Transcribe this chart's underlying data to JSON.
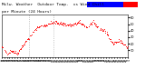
{
  "title": "Milw. Weather  Outdoor Temp.  vs Wind Chill",
  "subtitle": "per Minute (24 Hours)",
  "bg_color": "#ffffff",
  "plot_bg": "#ffffff",
  "temp_color": "#ff0000",
  "legend_blue": "#0000ff",
  "legend_red": "#ff0000",
  "ylim": [
    0,
    65
  ],
  "ytick_values": [
    10,
    20,
    30,
    40,
    50,
    60
  ],
  "ytick_labels": [
    "10",
    "20",
    "30",
    "40",
    "50",
    "60"
  ],
  "vline_x": [
    0.215,
    0.41
  ],
  "title_fontsize": 3.2,
  "tick_fontsize": 2.5,
  "seed": 42,
  "num_points": 288,
  "dot_size": 0.4
}
